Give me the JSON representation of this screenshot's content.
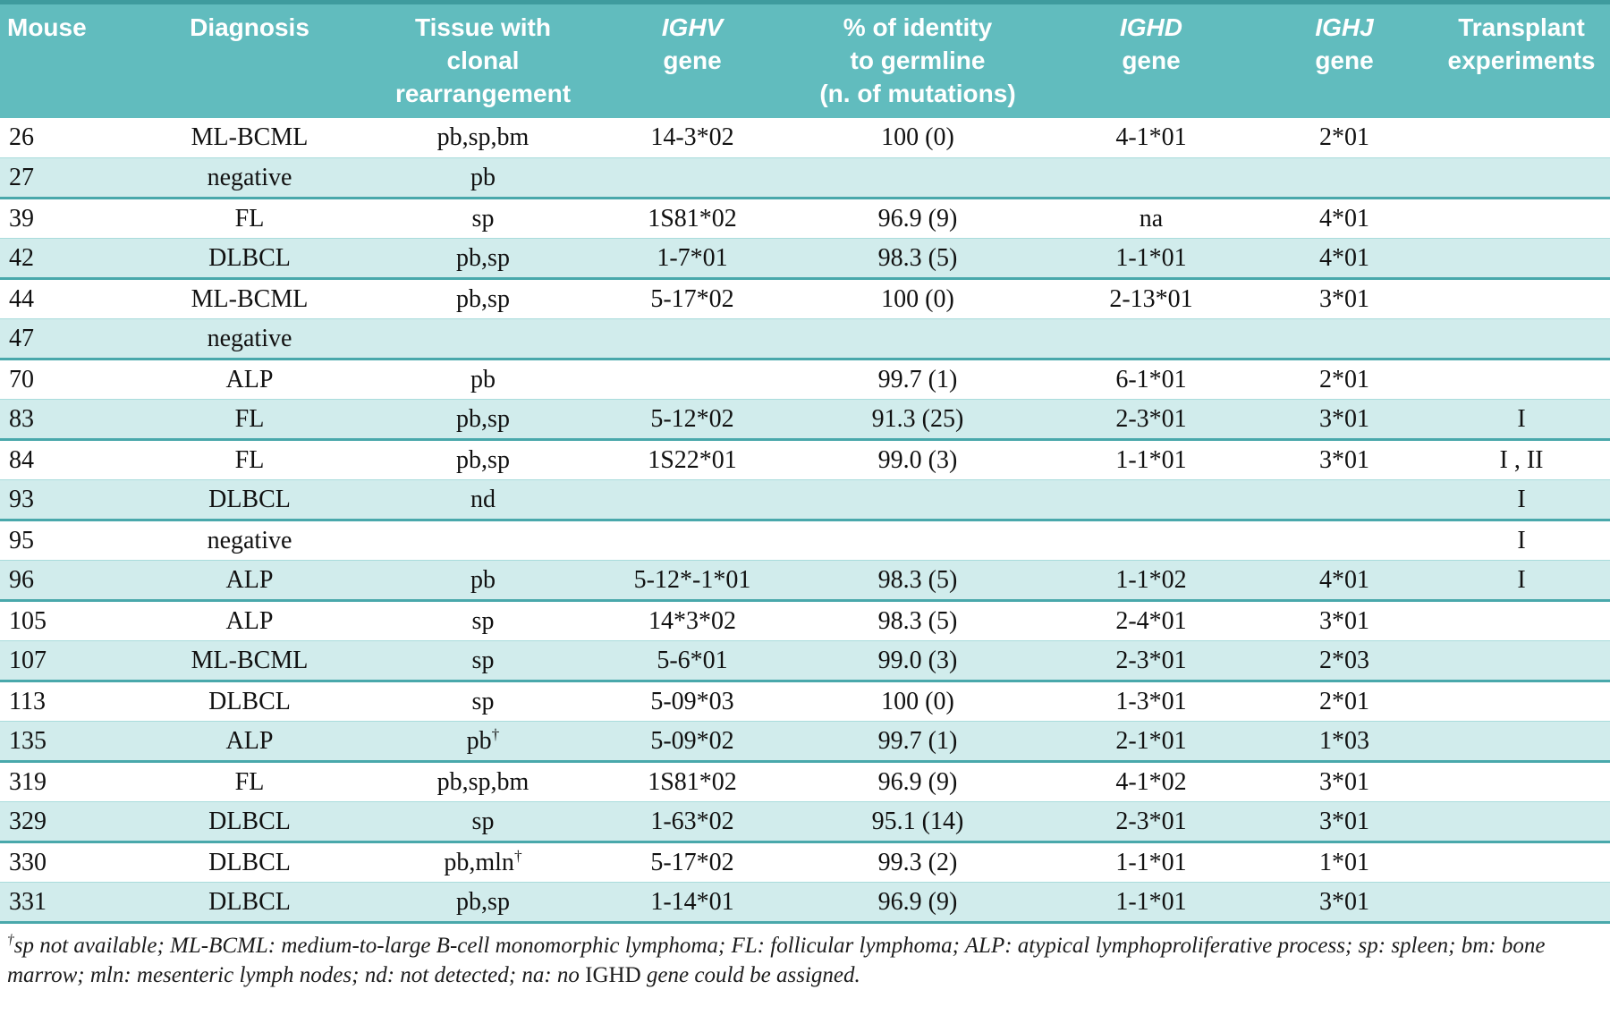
{
  "title": "Murine lymphoma clonal rearrangement table",
  "colors": {
    "header_bg": "#61bcbe",
    "header_text": "#ffffff",
    "row_alt_bg": "#d1ecec",
    "row_bg": "#ffffff",
    "separator": "#49a8ab",
    "top_edge": "#3e9b9e",
    "body_text": "#111111"
  },
  "table": {
    "headers": [
      {
        "key": "mouse",
        "lines": [
          "Mouse"
        ],
        "italic_first": false
      },
      {
        "key": "diagnosis",
        "lines": [
          "Diagnosis"
        ],
        "italic_first": false
      },
      {
        "key": "tissue",
        "lines": [
          "Tissue with",
          "clonal rearrangement"
        ],
        "italic_first": false
      },
      {
        "key": "ighv-gene",
        "lines": [
          "IGHV",
          "gene"
        ],
        "italic_first": true
      },
      {
        "key": "identity",
        "lines": [
          "% of identity",
          "to germline",
          "(n. of mutations)"
        ],
        "italic_first": false
      },
      {
        "key": "ighd-gene",
        "lines": [
          "IGHD",
          "gene"
        ],
        "italic_first": true
      },
      {
        "key": "ighj-gene",
        "lines": [
          "IGHJ",
          "gene"
        ],
        "italic_first": true
      },
      {
        "key": "transplant",
        "lines": [
          "Transplant",
          "experiments"
        ],
        "italic_first": false
      }
    ],
    "rows": [
      [
        "26",
        "ML-BCML",
        "pb,sp,bm",
        "14-3*02",
        "100 (0)",
        "4-1*01",
        "2*01",
        ""
      ],
      [
        "27",
        "negative",
        "pb",
        "",
        "",
        "",
        "",
        ""
      ],
      [
        "39",
        "FL",
        "sp",
        "1S81*02",
        "96.9 (9)",
        "na",
        "4*01",
        ""
      ],
      [
        "42",
        "DLBCL",
        "pb,sp",
        "1-7*01",
        "98.3 (5)",
        "1-1*01",
        "4*01",
        ""
      ],
      [
        "44",
        "ML-BCML",
        "pb,sp",
        "5-17*02",
        "100 (0)",
        "2-13*01",
        "3*01",
        ""
      ],
      [
        "47",
        "negative",
        "",
        "",
        "",
        "",
        "",
        ""
      ],
      [
        "70",
        "ALP",
        "pb",
        "",
        "99.7 (1)",
        "6-1*01",
        "2*01",
        ""
      ],
      [
        "83",
        "FL",
        "pb,sp",
        "5-12*02",
        "91.3 (25)",
        "2-3*01",
        "3*01",
        "I"
      ],
      [
        "84",
        "FL",
        "pb,sp",
        "1S22*01",
        "99.0 (3)",
        "1-1*01",
        "3*01",
        "I , II"
      ],
      [
        "93",
        "DLBCL",
        "nd",
        "",
        "",
        "",
        "",
        "I"
      ],
      [
        "95",
        "negative",
        "",
        "",
        "",
        "",
        "",
        "I"
      ],
      [
        "96",
        "ALP",
        "pb",
        "5-12*-1*01",
        "98.3 (5)",
        "1-1*02",
        "4*01",
        "I"
      ],
      [
        "105",
        "ALP",
        "sp",
        "14*3*02",
        "98.3 (5)",
        "2-4*01",
        "3*01",
        ""
      ],
      [
        "107",
        "ML-BCML",
        "sp",
        "5-6*01",
        "99.0 (3)",
        "2-3*01",
        "2*03",
        ""
      ],
      [
        "113",
        "DLBCL",
        "sp",
        "5-09*03",
        "100 (0)",
        "1-3*01",
        "2*01",
        ""
      ],
      [
        "135",
        "ALP",
        "pb†",
        "5-09*02",
        "99.7 (1)",
        "2-1*01",
        "1*03",
        ""
      ],
      [
        "319",
        "FL",
        "pb,sp,bm",
        "1S81*02",
        "96.9 (9)",
        "4-1*02",
        "3*01",
        ""
      ],
      [
        "329",
        "DLBCL",
        "sp",
        "1-63*02",
        "95.1 (14)",
        "2-3*01",
        "3*01",
        ""
      ],
      [
        "330",
        "DLBCL",
        "pb,mln†",
        "5-17*02",
        "99.3 (2)",
        "1-1*01",
        "1*01",
        ""
      ],
      [
        "331",
        "DLBCL",
        "pb,sp",
        "1-14*01",
        "96.9 (9)",
        "1-1*01",
        "3*01",
        ""
      ]
    ]
  },
  "footnote": {
    "segments": [
      {
        "text": "†",
        "sup": true,
        "italic": true
      },
      {
        "text": "sp not available; ML-BCML: medium-to-large B-cell monomorphic lymphoma; FL: follicular lymphoma; ALP: atypical lymphoproliferative process; sp: spleen; bm: bone marrow; mln: mesenteric lymph nodes; nd: not detected; na: no ",
        "sup": false,
        "italic": true
      },
      {
        "text": "IGHD",
        "sup": false,
        "italic": false
      },
      {
        "text": " gene could be assigned.",
        "sup": false,
        "italic": true
      }
    ]
  }
}
